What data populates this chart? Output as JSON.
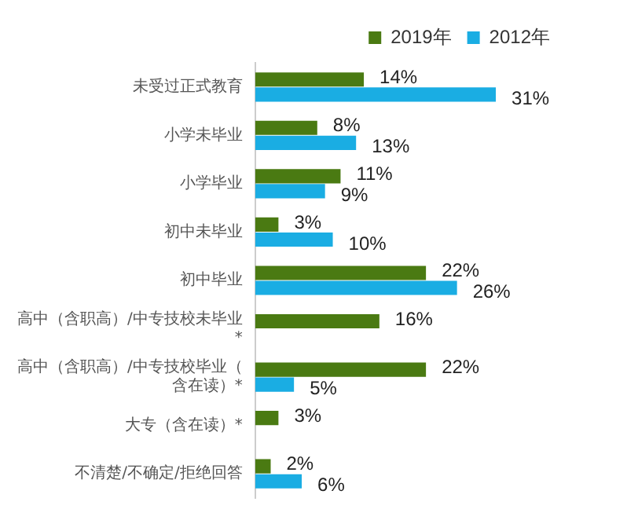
{
  "chart_data": {
    "type": "bar",
    "orientation": "horizontal",
    "categories": [
      "未受过正式教育",
      "小学未毕业",
      "小学毕业",
      "初中未毕业",
      "初中毕业",
      "高中（含职高）/中专技校未毕业*",
      "高中（含职高）/中专技校毕业（含在读）*",
      "大专（含在读）*",
      "不清楚/不确定/拒绝回答"
    ],
    "series": [
      {
        "name": "2019年",
        "color": "#4a7a12",
        "values": [
          14,
          8,
          11,
          3,
          22,
          16,
          22,
          3,
          2
        ],
        "value_labels": [
          "14%",
          "8%",
          "11%",
          "3%",
          "22%",
          "16%",
          "22%",
          "3%",
          "2%"
        ]
      },
      {
        "name": "2012年",
        "color": "#1aade3",
        "values": [
          31,
          13,
          9,
          10,
          26,
          null,
          5,
          null,
          6
        ],
        "value_labels": [
          "31%",
          "13%",
          "9%",
          "10%",
          "26%",
          null,
          "5%",
          null,
          "6%"
        ]
      }
    ],
    "legend": "top right",
    "grid": false
  }
}
